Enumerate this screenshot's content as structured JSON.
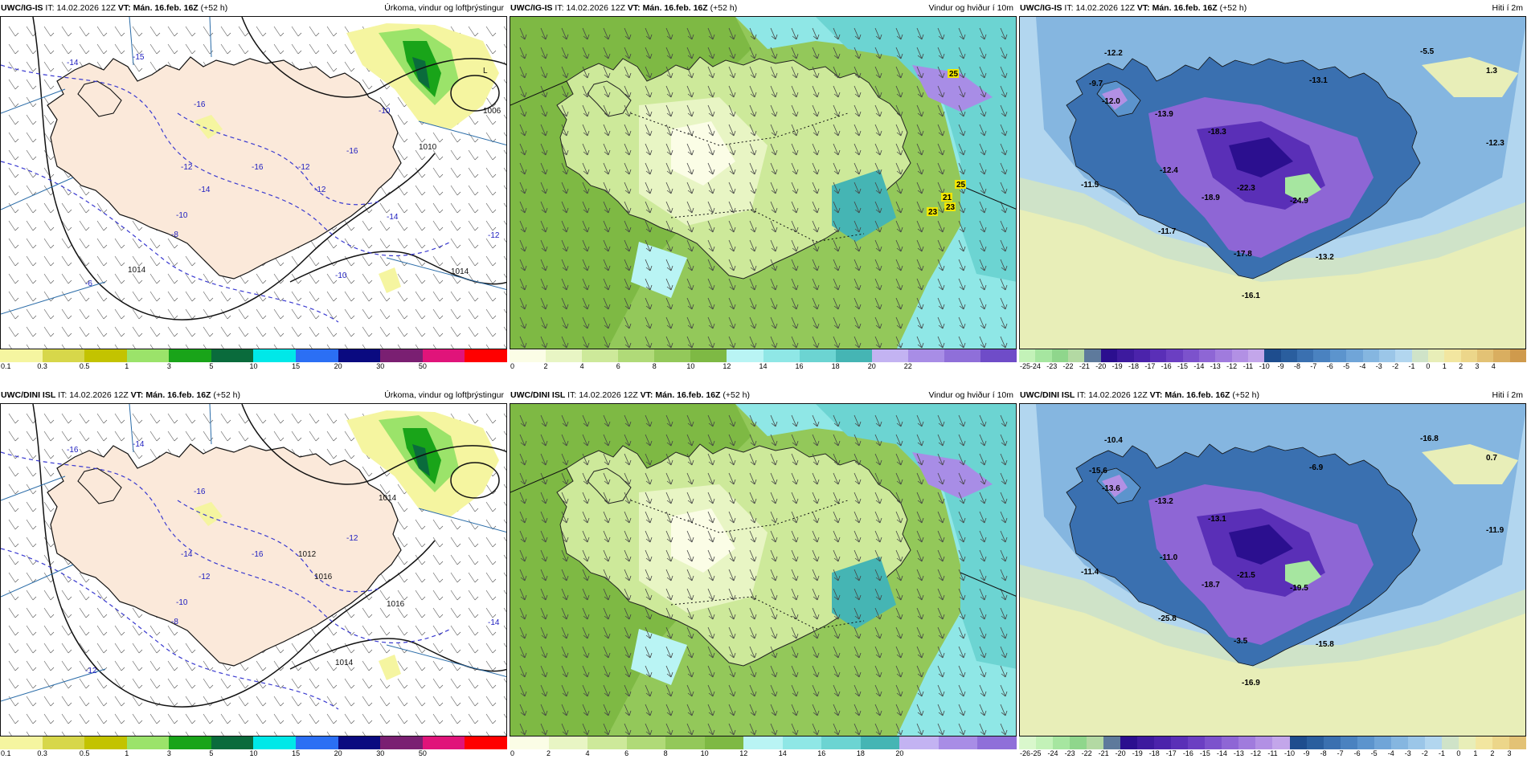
{
  "panels": [
    {
      "id": "p1",
      "model": "UWC/IG-IS",
      "it_label": "IT:",
      "it_value": "14.02.2026 12Z",
      "vt_label": "VT:",
      "vt_value": "Mán. 16.feb. 16Z",
      "lead": "(+52 h)",
      "title": "Úrkoma, vindur og loftþrýstingur",
      "kind": "precip",
      "scale_colors": [
        "#f5f5a0",
        "#d7d74a",
        "#c3c300",
        "#9be36a",
        "#19a419",
        "#0a6b3c",
        "#00e8e8",
        "#2b6ff4",
        "#0a0a80",
        "#7a1f72",
        "#e0147a",
        "#ff0000"
      ],
      "scale_ticks": [
        "0.1",
        "0.3",
        "0.5",
        "1",
        "3",
        "5",
        "10",
        "15",
        "20",
        "30",
        "50"
      ],
      "labels": [
        "-14",
        "-15",
        "-16",
        "-16",
        "-16",
        "-12",
        "-14",
        "-10",
        "-8",
        "-6",
        "-12",
        "-14",
        "-12",
        "-10",
        "-12",
        "-10",
        "1014",
        "1010",
        "1006",
        "1014",
        "L"
      ]
    },
    {
      "id": "p2",
      "model": "UWC/IG-IS",
      "it_label": "IT:",
      "it_value": "14.02.2026 12Z",
      "vt_label": "VT:",
      "vt_value": "Mán. 16.feb. 16Z",
      "lead": "(+52 h)",
      "title": "Vindur og hviður í 10m",
      "kind": "wind",
      "scale_colors": [
        "#fbfde6",
        "#e8f5c4",
        "#cde99a",
        "#b0da78",
        "#93c85a",
        "#7eb944",
        "#b9f4f4",
        "#8fe7e6",
        "#6cd4d2",
        "#45b5b4",
        "#c3b3f2",
        "#a88de6",
        "#8f6fd9",
        "#6f4cc8"
      ],
      "scale_ticks": [
        "0",
        "2",
        "4",
        "6",
        "8",
        "10",
        "12",
        "14",
        "16",
        "18",
        "20",
        "22"
      ],
      "labels": [
        "25",
        "25",
        "21",
        "23",
        "23"
      ]
    },
    {
      "id": "p3",
      "model": "UWC/IG-IS",
      "it_label": "IT:",
      "it_value": "14.02.2026 12Z",
      "vt_label": "VT:",
      "vt_value": "Mán. 16.feb. 16Z",
      "lead": "(+52 h)",
      "title": "Hiti í 2m",
      "kind": "temp",
      "scale_colors": [
        "#c3f2b8",
        "#a6e6a0",
        "#8fd68c",
        "#b3d9a3",
        "#5e7a9c",
        "#2b0f8f",
        "#3d1a9e",
        "#4b23ab",
        "#5a2fb7",
        "#6b3fc2",
        "#7c52cc",
        "#8e66d5",
        "#a07bdd",
        "#b290e4",
        "#c3a6ea",
        "#1e4d8e",
        "#2a5e9e",
        "#3a70b0",
        "#4a82c0",
        "#5c94cd",
        "#70a5d8",
        "#85b6e0",
        "#9bc6e8",
        "#b2d6ef",
        "#cfe3c8",
        "#e8eeb8",
        "#f2e6a0",
        "#ecd68a",
        "#e3c275",
        "#d9ae60",
        "#cf9a4c"
      ],
      "scale_ticks": [
        "-25",
        "-24",
        "-23",
        "-22",
        "-21",
        "-20",
        "-19",
        "-18",
        "-17",
        "-16",
        "-15",
        "-14",
        "-13",
        "-12",
        "-11",
        "-10",
        "-9",
        "-8",
        "-7",
        "-6",
        "-5",
        "-4",
        "-3",
        "-2",
        "-1",
        "0",
        "1",
        "2",
        "3",
        "4"
      ],
      "labels": [
        "-12.2",
        "-9.7",
        "-12.0",
        "-13.9",
        "-13.1",
        "-18.3",
        "-12.4",
        "-18.9",
        "-22.3",
        "-24.9",
        "-12.3",
        "-11.5",
        "-11.7",
        "-17.8",
        "-13.2",
        "-16.1",
        "-5.5",
        "1.3"
      ]
    },
    {
      "id": "p4",
      "model": "UWC/DINI ISL",
      "it_label": "IT:",
      "it_value": "14.02.2026 12Z",
      "vt_label": "VT:",
      "vt_value": "Mán. 16.feb. 16Z",
      "lead": "(+52 h)",
      "title": "Úrkoma, vindur og loftþrýstingur",
      "kind": "precip",
      "scale_colors": [
        "#f5f5a0",
        "#d7d74a",
        "#c3c300",
        "#9be36a",
        "#19a419",
        "#0a6b3c",
        "#00e8e8",
        "#2b6ff4",
        "#0a0a80",
        "#7a1f72",
        "#e0147a",
        "#ff0000"
      ],
      "scale_ticks": [
        "0.1",
        "0.3",
        "0.5",
        "1",
        "3",
        "5",
        "10",
        "15",
        "20",
        "30",
        "50"
      ],
      "labels": [
        "-16",
        "-14",
        "-16",
        "-16",
        "-12",
        "-14",
        "-12",
        "-10",
        "-8",
        "-12",
        "-14",
        "1016",
        "1016",
        "1014",
        "1012",
        "1014"
      ]
    },
    {
      "id": "p5",
      "model": "UWC/DINI ISL",
      "it_label": "IT:",
      "it_value": "14.02.2026 12Z",
      "vt_label": "VT:",
      "vt_value": "Mán. 16.feb. 16Z",
      "lead": "(+52 h)",
      "title": "Vindur og hviður í 10m",
      "kind": "wind",
      "scale_colors": [
        "#fbfde6",
        "#e8f5c4",
        "#cde99a",
        "#b0da78",
        "#93c85a",
        "#7eb944",
        "#b9f4f4",
        "#8fe7e6",
        "#6cd4d2",
        "#45b5b4",
        "#c3b3f2",
        "#a88de6",
        "#8f6fd9"
      ],
      "scale_ticks": [
        "0",
        "2",
        "4",
        "6",
        "8",
        "10",
        "12",
        "14",
        "16",
        "18",
        "20"
      ],
      "labels": []
    },
    {
      "id": "p6",
      "model": "UWC/DINI ISL",
      "it_label": "IT:",
      "it_value": "14.02.2026 12Z",
      "vt_label": "VT:",
      "vt_value": "Mán. 16.feb. 16Z",
      "lead": "(+52 h)",
      "title": "Hiti í 2m",
      "kind": "temp",
      "scale_colors": [
        "#d9f7cc",
        "#c3f2b8",
        "#a6e6a0",
        "#8fd68c",
        "#b3d9a3",
        "#5e7a9c",
        "#2b0f8f",
        "#3d1a9e",
        "#4b23ab",
        "#5a2fb7",
        "#6b3fc2",
        "#7c52cc",
        "#8e66d5",
        "#a07bdd",
        "#b290e4",
        "#c3a6ea",
        "#1e4d8e",
        "#2a5e9e",
        "#3a70b0",
        "#4a82c0",
        "#5c94cd",
        "#70a5d8",
        "#85b6e0",
        "#9bc6e8",
        "#b2d6ef",
        "#cfe3c8",
        "#e8eeb8",
        "#f2e6a0",
        "#ecd68a",
        "#e3c275"
      ],
      "scale_ticks": [
        "-26",
        "-25",
        "-24",
        "-23",
        "-22",
        "-21",
        "-20",
        "-19",
        "-18",
        "-17",
        "-16",
        "-15",
        "-14",
        "-13",
        "-12",
        "-11",
        "-10",
        "-9",
        "-8",
        "-7",
        "-6",
        "-5",
        "-4",
        "-3",
        "-2",
        "-1",
        "0",
        "1",
        "2",
        "3"
      ],
      "labels": [
        "-10.4",
        "-15.6",
        "-13.6",
        "-13.2",
        "-6.9",
        "-13.1",
        "-11.0",
        "-18.7",
        "-21.5",
        "-19.5",
        "-11.9",
        "-11.4",
        "-25.8",
        "-3.5",
        "-15.8",
        "-16.9",
        "-16.8",
        "0.7"
      ]
    }
  ]
}
